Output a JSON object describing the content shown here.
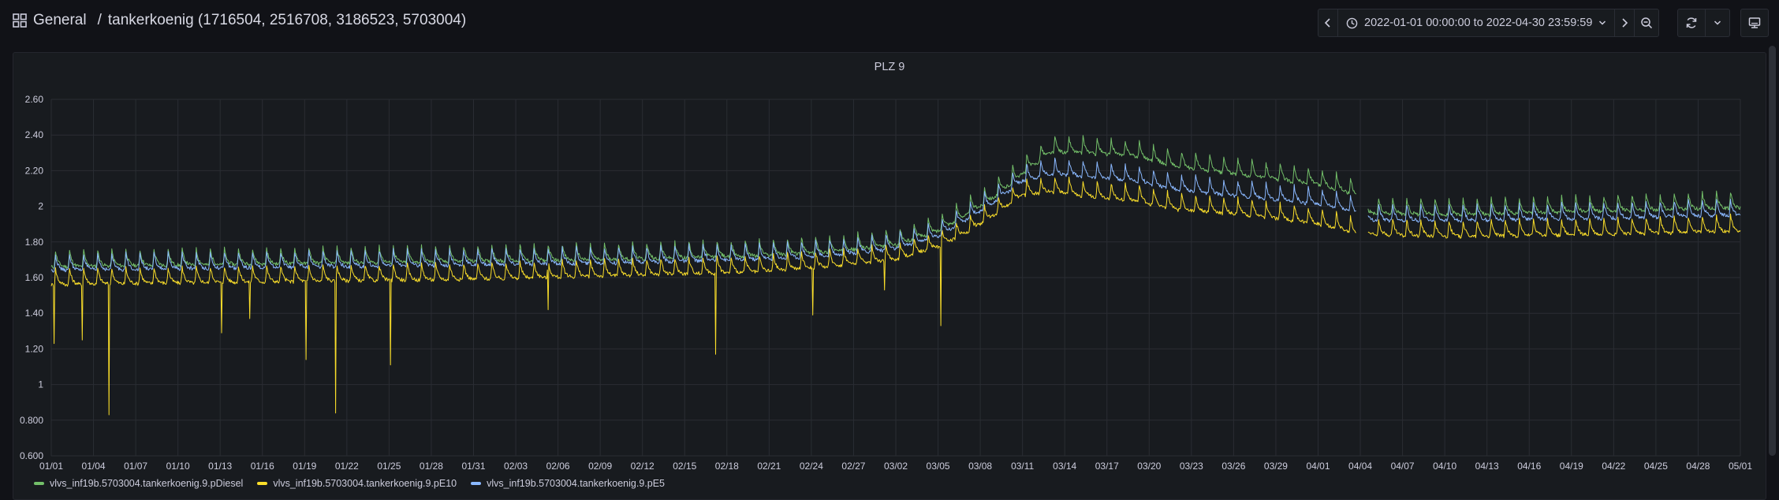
{
  "breadcrumb": {
    "folder": "General",
    "separator": "/",
    "dashboard": "tankerkoenig (1716504, 2516708, 3186523, 5703004)"
  },
  "toolbar": {
    "time_range": "2022-01-01 00:00:00 to 2022-04-30 23:59:59",
    "icons": [
      "chevron-left-icon",
      "clock-icon",
      "chevron-down-icon",
      "chevron-right-icon",
      "zoom-out-icon",
      "refresh-icon",
      "chevron-down-icon",
      "tv-icon"
    ]
  },
  "panel": {
    "title": "PLZ 9"
  },
  "chart_data": {
    "type": "line",
    "title": "PLZ 9",
    "xlabel": "",
    "ylabel": "",
    "ylim": [
      0.6,
      2.6
    ],
    "yticks": [
      "0.600",
      "0.800",
      "1",
      "1.20",
      "1.40",
      "1.60",
      "1.80",
      "2",
      "2.20",
      "2.40",
      "2.60"
    ],
    "xticks": [
      "01/01",
      "01/04",
      "01/07",
      "01/10",
      "01/13",
      "01/16",
      "01/19",
      "01/22",
      "01/25",
      "01/28",
      "01/31",
      "02/03",
      "02/06",
      "02/09",
      "02/12",
      "02/15",
      "02/18",
      "02/21",
      "02/24",
      "02/27",
      "03/02",
      "03/05",
      "03/08",
      "03/11",
      "03/14",
      "03/17",
      "03/20",
      "03/23",
      "03/26",
      "03/29",
      "04/01",
      "04/04",
      "04/07",
      "04/10",
      "04/13",
      "04/16",
      "04/19",
      "04/22",
      "04/25",
      "04/28",
      "05/01"
    ],
    "xlim_days": [
      0,
      120
    ],
    "grid": true,
    "legend_position": "bottom-left",
    "series": [
      {
        "name": "vlvs_inf19b.5703004.tankerkoenig.9.pDiesel",
        "color": "#73bf69",
        "baseline": [
          [
            0,
            1.66
          ],
          [
            10,
            1.67
          ],
          [
            20,
            1.68
          ],
          [
            30,
            1.69
          ],
          [
            40,
            1.7
          ],
          [
            50,
            1.72
          ],
          [
            55,
            1.74
          ],
          [
            60,
            1.78
          ],
          [
            63,
            1.86
          ],
          [
            65,
            1.95
          ],
          [
            67,
            2.05
          ],
          [
            69,
            2.18
          ],
          [
            71,
            2.3
          ],
          [
            73,
            2.3
          ],
          [
            77,
            2.28
          ],
          [
            80,
            2.22
          ],
          [
            85,
            2.17
          ],
          [
            90,
            2.12
          ],
          [
            92,
            2.08
          ],
          [
            92.7,
            2.06
          ],
          [
            93.5,
            1.96
          ],
          [
            100,
            1.95
          ],
          [
            110,
            1.97
          ],
          [
            120,
            1.99
          ]
        ],
        "spike_amp": 0.09
      },
      {
        "name": "vlvs_inf19b.5703004.tankerkoenig.9.pE10",
        "color": "#fade2a",
        "baseline": [
          [
            0,
            1.56
          ],
          [
            10,
            1.57
          ],
          [
            20,
            1.58
          ],
          [
            30,
            1.59
          ],
          [
            40,
            1.61
          ],
          [
            50,
            1.63
          ],
          [
            55,
            1.66
          ],
          [
            60,
            1.7
          ],
          [
            63,
            1.77
          ],
          [
            65,
            1.85
          ],
          [
            67,
            1.95
          ],
          [
            69,
            2.06
          ],
          [
            71,
            2.08
          ],
          [
            73,
            2.06
          ],
          [
            77,
            2.03
          ],
          [
            80,
            1.98
          ],
          [
            85,
            1.95
          ],
          [
            90,
            1.9
          ],
          [
            92,
            1.86
          ],
          [
            92.7,
            1.84
          ],
          [
            93.5,
            1.84
          ],
          [
            100,
            1.83
          ],
          [
            110,
            1.84
          ],
          [
            120,
            1.86
          ]
        ],
        "spike_amp": 0.09,
        "drops": [
          [
            0.2,
            1.23
          ],
          [
            2.2,
            1.25
          ],
          [
            4.1,
            0.83
          ],
          [
            12.1,
            1.29
          ],
          [
            14.1,
            1.37
          ],
          [
            18.1,
            1.14
          ],
          [
            20.2,
            0.84
          ],
          [
            24.1,
            1.11
          ],
          [
            35.3,
            1.42
          ],
          [
            47.2,
            1.17
          ],
          [
            54.1,
            1.39
          ],
          [
            59.2,
            1.53
          ],
          [
            63.2,
            1.33
          ],
          [
            93.0,
            1.74
          ]
        ]
      },
      {
        "name": "vlvs_inf19b.5703004.tankerkoenig.9.pE5",
        "color": "#8ab8ff",
        "baseline": [
          [
            0,
            1.64
          ],
          [
            10,
            1.65
          ],
          [
            20,
            1.66
          ],
          [
            30,
            1.67
          ],
          [
            40,
            1.68
          ],
          [
            50,
            1.7
          ],
          [
            55,
            1.72
          ],
          [
            60,
            1.76
          ],
          [
            63,
            1.83
          ],
          [
            65,
            1.92
          ],
          [
            67,
            2.02
          ],
          [
            69,
            2.14
          ],
          [
            71,
            2.18
          ],
          [
            73,
            2.17
          ],
          [
            77,
            2.14
          ],
          [
            80,
            2.09
          ],
          [
            85,
            2.05
          ],
          [
            90,
            2.01
          ],
          [
            92,
            1.98
          ],
          [
            92.7,
            1.96
          ],
          [
            93.5,
            1.92
          ],
          [
            100,
            1.92
          ],
          [
            110,
            1.93
          ],
          [
            120,
            1.95
          ]
        ],
        "spike_amp": 0.09
      }
    ],
    "gap_days": [
      92.7,
      93.5
    ]
  }
}
